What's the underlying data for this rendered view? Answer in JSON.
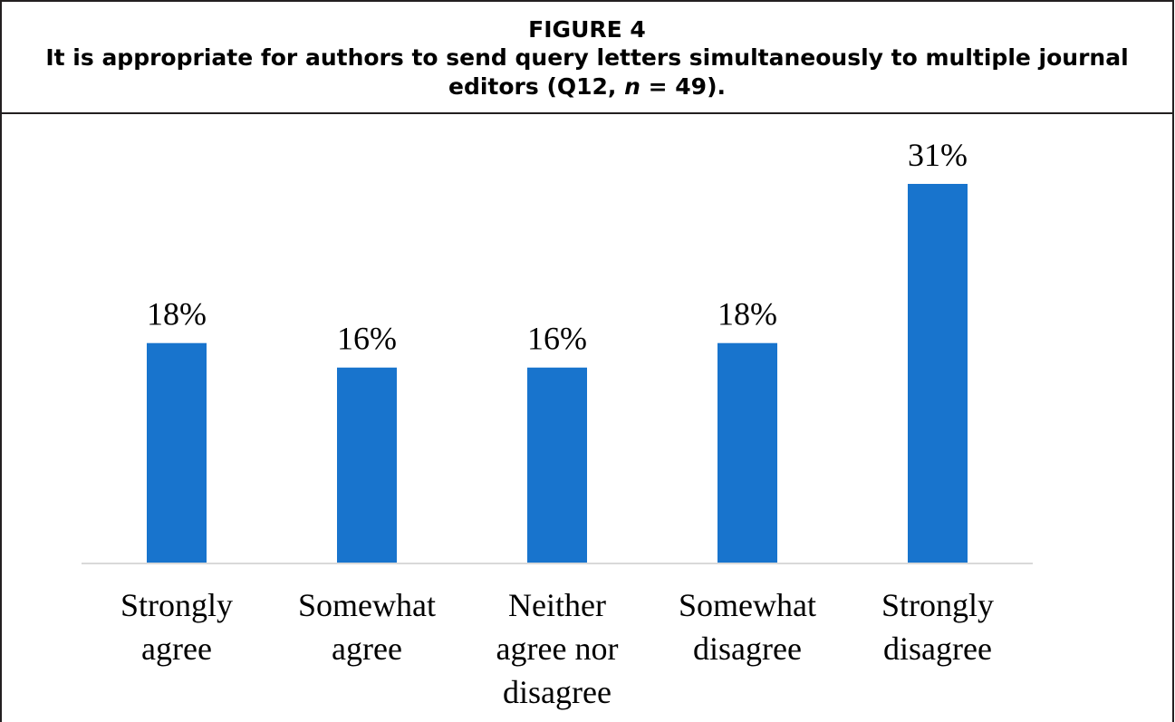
{
  "figure": {
    "label": "FIGURE 4",
    "caption_main": "It is appropriate for authors to send query letters simultaneously to multiple journal editors (Q12, ",
    "caption_n": "n",
    "caption_tail": " = 49)."
  },
  "chart_data": {
    "type": "bar",
    "categories": [
      "Strongly agree",
      "Somewhat agree",
      "Neither agree nor disagree",
      "Somewhat disagree",
      "Strongly disagree"
    ],
    "category_lines": [
      [
        "Strongly",
        "agree"
      ],
      [
        "Somewhat",
        "agree"
      ],
      [
        "Neither",
        "agree nor",
        "disagree"
      ],
      [
        "Somewhat",
        "disagree"
      ],
      [
        "Strongly",
        "disagree"
      ]
    ],
    "values": [
      18,
      16,
      16,
      18,
      31
    ],
    "data_labels": [
      "18%",
      "16%",
      "16%",
      "18%",
      "31%"
    ],
    "ylim": [
      0,
      31
    ],
    "bar_color": "#1874cd",
    "axis_color": "#d9d9d9",
    "grid": false,
    "legend": "none"
  }
}
